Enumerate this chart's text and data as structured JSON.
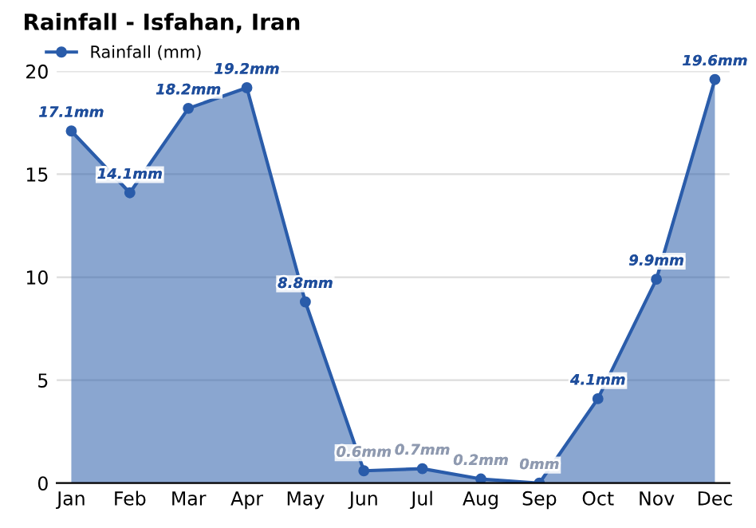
{
  "chart_data": {
    "type": "area",
    "title": "Rainfall - Isfahan, Iran",
    "categories": [
      "Jan",
      "Feb",
      "Mar",
      "Apr",
      "May",
      "Jun",
      "Jul",
      "Aug",
      "Sep",
      "Oct",
      "Nov",
      "Dec"
    ],
    "series": [
      {
        "name": "Rainfall (mm)",
        "color": "#2a5caa",
        "values": [
          17.1,
          14.1,
          18.2,
          19.2,
          8.8,
          0.6,
          0.7,
          0.2,
          0,
          4.1,
          9.9,
          19.6
        ],
        "value_labels": [
          "17.1mm",
          "14.1mm",
          "18.2mm",
          "19.2mm",
          "8.8mm",
          "0.6mm",
          "0.7mm",
          "0.2mm",
          "0mm",
          "4.1mm",
          "9.9mm",
          "19.6mm"
        ]
      }
    ],
    "ylim": [
      0,
      20
    ],
    "yticks": [
      0,
      5,
      10,
      15,
      20
    ],
    "grid": "y",
    "legend": "top left",
    "marker": "circle",
    "line_style": "solid"
  }
}
